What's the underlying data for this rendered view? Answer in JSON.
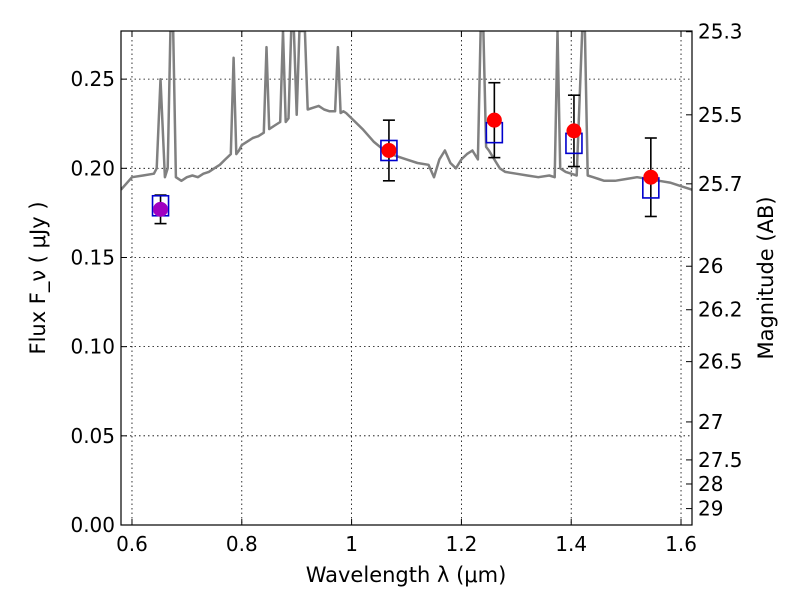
{
  "chart_data": {
    "type": "scatter",
    "xlabel": "Wavelength  λ (μm)",
    "ylabel": "Flux  F_ν  ( μJy )",
    "y2label": "Magnitude (AB)",
    "xlim": [
      0.58,
      1.62
    ],
    "ylim": [
      0.0,
      0.277
    ],
    "grid": true,
    "xticks": [
      0.6,
      0.8,
      1.0,
      1.2,
      1.4,
      1.6
    ],
    "xtick_labels": [
      "0.6",
      "0.8",
      "1",
      "1.2",
      "1.4",
      "1.6"
    ],
    "yticks": [
      0.0,
      0.05,
      0.1,
      0.15,
      0.2,
      0.25
    ],
    "ytick_labels": [
      "0.00",
      "0.05",
      "0.10",
      "0.15",
      "0.20",
      "0.25"
    ],
    "mag_ticks": [
      {
        "label": "25.3",
        "flux": 0.2766
      },
      {
        "label": "25.5",
        "flux": 0.23
      },
      {
        "label": "25.7",
        "flux": 0.1913
      },
      {
        "label": "26",
        "flux": 0.1451
      },
      {
        "label": "26.2",
        "flux": 0.1207
      },
      {
        "label": "26.5",
        "flux": 0.0916
      },
      {
        "label": "27",
        "flux": 0.0578
      },
      {
        "label": "27.5",
        "flux": 0.0365
      },
      {
        "label": "28",
        "flux": 0.023
      },
      {
        "label": "29",
        "flux": 0.0092
      }
    ],
    "series": [
      {
        "kind": "line",
        "color": "#808080",
        "x": [
          0.58,
          0.6,
          0.62,
          0.64,
          0.645,
          0.652,
          0.66,
          0.665,
          0.67,
          0.675,
          0.68,
          0.69,
          0.7,
          0.71,
          0.72,
          0.73,
          0.74,
          0.75,
          0.76,
          0.77,
          0.78,
          0.785,
          0.79,
          0.795,
          0.8,
          0.81,
          0.82,
          0.83,
          0.84,
          0.845,
          0.85,
          0.86,
          0.87,
          0.875,
          0.88,
          0.885,
          0.89,
          0.895,
          0.9,
          0.905,
          0.91,
          0.915,
          0.92,
          0.93,
          0.94,
          0.95,
          0.96,
          0.97,
          0.975,
          0.98,
          0.985,
          0.99,
          1.0,
          1.02,
          1.04,
          1.06,
          1.08,
          1.1,
          1.12,
          1.14,
          1.15,
          1.16,
          1.17,
          1.18,
          1.19,
          1.2,
          1.21,
          1.22,
          1.23,
          1.235,
          1.24,
          1.245,
          1.25,
          1.26,
          1.27,
          1.28,
          1.3,
          1.32,
          1.34,
          1.36,
          1.37,
          1.375,
          1.38,
          1.39,
          1.4,
          1.41,
          1.42,
          1.425,
          1.43,
          1.44,
          1.45,
          1.46,
          1.48,
          1.5,
          1.52,
          1.54,
          1.56,
          1.58,
          1.6,
          1.62
        ],
        "y": [
          0.188,
          0.195,
          0.196,
          0.197,
          0.2,
          0.25,
          0.195,
          0.2,
          0.277,
          0.277,
          0.195,
          0.193,
          0.195,
          0.196,
          0.195,
          0.197,
          0.198,
          0.2,
          0.202,
          0.205,
          0.208,
          0.262,
          0.208,
          0.21,
          0.213,
          0.215,
          0.217,
          0.218,
          0.22,
          0.268,
          0.222,
          0.224,
          0.226,
          0.277,
          0.226,
          0.228,
          0.277,
          0.277,
          0.23,
          0.277,
          0.277,
          0.277,
          0.233,
          0.234,
          0.235,
          0.233,
          0.232,
          0.232,
          0.268,
          0.231,
          0.232,
          0.231,
          0.228,
          0.222,
          0.215,
          0.21,
          0.207,
          0.205,
          0.203,
          0.202,
          0.195,
          0.205,
          0.21,
          0.203,
          0.2,
          0.205,
          0.208,
          0.21,
          0.205,
          0.277,
          0.277,
          0.212,
          0.21,
          0.205,
          0.2,
          0.198,
          0.197,
          0.196,
          0.195,
          0.196,
          0.195,
          0.277,
          0.2,
          0.198,
          0.197,
          0.196,
          0.277,
          0.277,
          0.196,
          0.195,
          0.194,
          0.193,
          0.193,
          0.194,
          0.195,
          0.194,
          0.193,
          0.192,
          0.19,
          0.188
        ]
      },
      {
        "kind": "errorbar",
        "color": "#000000",
        "x": [
          0.652,
          1.068,
          1.26,
          1.405,
          1.545
        ],
        "y": [
          0.177,
          0.21,
          0.227,
          0.221,
          0.195
        ],
        "err": [
          0.008,
          0.017,
          0.021,
          0.02,
          0.022
        ]
      },
      {
        "kind": "box",
        "color": "#0000cc",
        "x": [
          0.652,
          1.068,
          1.26,
          1.405,
          1.545
        ],
        "y": [
          0.179,
          0.21,
          0.22,
          0.214,
          0.189
        ]
      },
      {
        "kind": "point",
        "colors": [
          "#a000c0",
          "#ff0000",
          "#ff0000",
          "#ff0000",
          "#ff0000"
        ],
        "x": [
          0.652,
          1.068,
          1.26,
          1.405,
          1.545
        ],
        "y": [
          0.177,
          0.21,
          0.227,
          0.221,
          0.195
        ]
      }
    ]
  }
}
